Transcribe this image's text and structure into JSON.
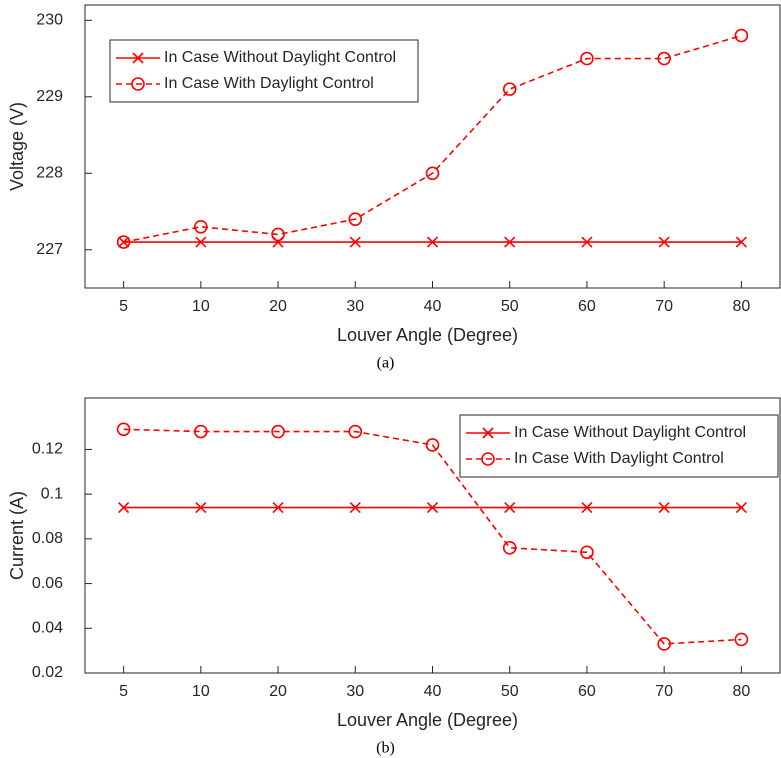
{
  "chart_data": [
    {
      "type": "line",
      "caption": "(a)",
      "xlabel": "Louver Angle (Degree)",
      "ylabel": "Voltage (V)",
      "categories": [
        "5",
        "10",
        "20",
        "30",
        "40",
        "50",
        "60",
        "70",
        "80"
      ],
      "ylim": [
        226.5,
        230.2
      ],
      "yticks": [
        227,
        228,
        229,
        230
      ],
      "grid": false,
      "legend": "upper left",
      "series": [
        {
          "name": "In Case Without Daylight Control",
          "color": "#ff0000",
          "marker": "x",
          "linestyle": "solid",
          "values": [
            227.1,
            227.1,
            227.1,
            227.1,
            227.1,
            227.1,
            227.1,
            227.1,
            227.1
          ]
        },
        {
          "name": "In Case With Daylight Control",
          "color": "#ff0000",
          "marker": "o",
          "linestyle": "dashed",
          "values": [
            227.1,
            227.3,
            227.2,
            227.4,
            228.0,
            229.1,
            229.5,
            229.5,
            229.8
          ]
        }
      ]
    },
    {
      "type": "line",
      "caption": "(b)",
      "xlabel": "Louver Angle (Degree)",
      "ylabel": "Current (A)",
      "categories": [
        "5",
        "10",
        "20",
        "30",
        "40",
        "50",
        "60",
        "70",
        "80"
      ],
      "ylim": [
        0.02,
        0.143
      ],
      "yticks": [
        0.02,
        0.04,
        0.06,
        0.08,
        0.1,
        0.12
      ],
      "grid": false,
      "legend": "upper right",
      "series": [
        {
          "name": "In Case Without Daylight Control",
          "color": "#ff0000",
          "marker": "x",
          "linestyle": "solid",
          "values": [
            0.094,
            0.094,
            0.094,
            0.094,
            0.094,
            0.094,
            0.094,
            0.094,
            0.094
          ]
        },
        {
          "name": "In Case With Daylight Control",
          "color": "#ff0000",
          "marker": "o",
          "linestyle": "dashed",
          "values": [
            0.129,
            0.128,
            0.128,
            0.128,
            0.122,
            0.076,
            0.074,
            0.033,
            0.035
          ]
        }
      ]
    }
  ]
}
